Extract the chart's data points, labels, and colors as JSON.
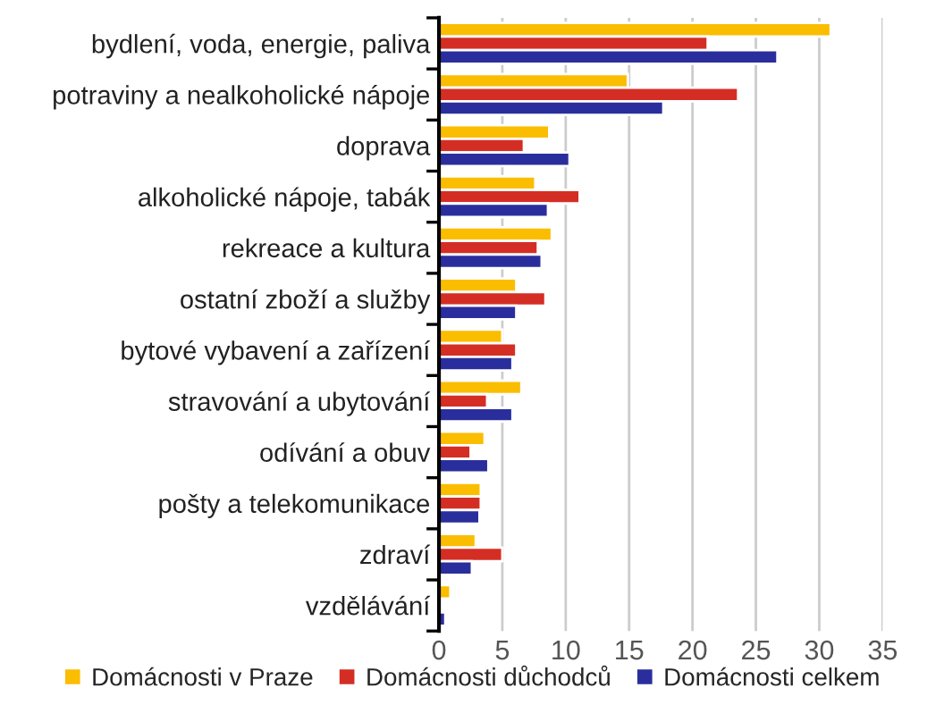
{
  "chart_data": {
    "type": "bar",
    "orientation": "horizontal",
    "categories": [
      "bydlení, voda, energie, paliva",
      "potraviny a nealkoholické nápoje",
      "doprava",
      "alkoholické nápoje, tabák",
      "rekreace a kultura",
      "ostatní zboží a služby",
      "bytové vybavení a zařízení",
      "stravování a ubytování",
      "odívání a obuv",
      "pošty a telekomunikace",
      "zdraví",
      "vzdělávání"
    ],
    "series": [
      {
        "name": "Domácnosti v Praze",
        "color": "#fbbd00",
        "values": [
          30.9,
          14.9,
          8.7,
          7.6,
          8.9,
          6.1,
          5.0,
          6.5,
          3.6,
          3.3,
          2.9,
          0.9
        ]
      },
      {
        "name": "Domácnosti důchodců",
        "color": "#d42e24",
        "values": [
          21.2,
          23.6,
          6.7,
          11.1,
          7.8,
          8.4,
          6.1,
          3.8,
          2.5,
          3.3,
          5.0,
          null
        ]
      },
      {
        "name": "Domácnosti celkem",
        "color": "#2a2e9c",
        "values": [
          26.7,
          17.7,
          10.3,
          8.6,
          8.1,
          6.1,
          5.8,
          5.8,
          3.9,
          3.2,
          2.6,
          0.5
        ]
      }
    ],
    "xlim": [
      0,
      35
    ],
    "xticks": [
      0,
      5,
      10,
      15,
      20,
      25,
      30,
      35
    ],
    "grid": "x",
    "legend": "bottom"
  }
}
